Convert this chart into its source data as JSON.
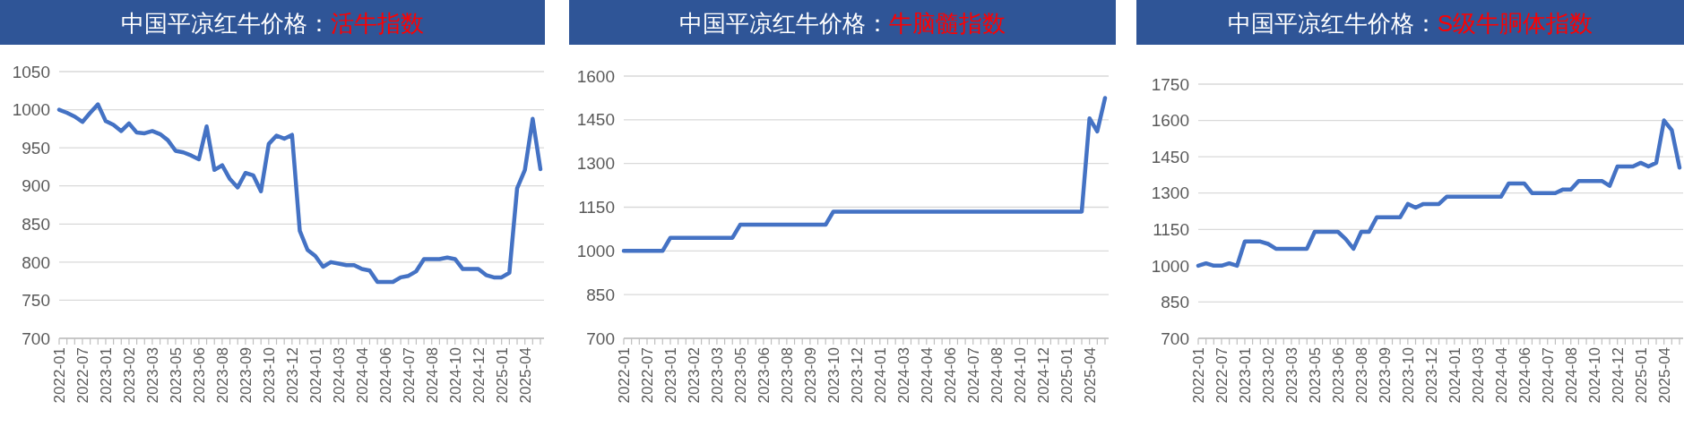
{
  "chart_data": [
    {
      "type": "line",
      "title": "中国平凉红牛价格：",
      "subtitle": "活牛指数",
      "categories": [
        "2022-01",
        null,
        null,
        "2022-07",
        null,
        null,
        "2023-01",
        null,
        null,
        "2023-02",
        null,
        null,
        "2023-03",
        null,
        null,
        "2023-05",
        null,
        null,
        "2023-06",
        null,
        null,
        "2023-08",
        null,
        null,
        "2023-09",
        null,
        null,
        "2023-10",
        null,
        null,
        "2023-12",
        null,
        null,
        "2024-01",
        null,
        null,
        "2024-03",
        null,
        null,
        "2024-04",
        null,
        null,
        "2024-06",
        null,
        null,
        "2024-07",
        null,
        null,
        "2024-08",
        null,
        null,
        "2024-10",
        null,
        null,
        "2024-12",
        null,
        null,
        "2025-01",
        null,
        null,
        "2025-04",
        null,
        null
      ],
      "series": [
        {
          "color": "#4472c4",
          "values": [
            1000,
            996,
            991,
            984,
            996,
            1007,
            985,
            980,
            972,
            982,
            970,
            969,
            972,
            968,
            960,
            946,
            944,
            940,
            935,
            978,
            921,
            927,
            909,
            898,
            917,
            914,
            893,
            955,
            966,
            962,
            967,
            841,
            816,
            808,
            794,
            800,
            798,
            796,
            796,
            791,
            789,
            774,
            774,
            774,
            780,
            782,
            788,
            804,
            804,
            804,
            806,
            804,
            791,
            791,
            791,
            783,
            780,
            780,
            786,
            897,
            921,
            988,
            922
          ]
        }
      ],
      "ylim": [
        700,
        1050
      ],
      "yticks": [
        700,
        750,
        800,
        850,
        900,
        950,
        1000,
        1050
      ],
      "grid": "y"
    },
    {
      "type": "line",
      "title": "中国平凉红牛价格：",
      "subtitle": "牛脑髓指数",
      "categories": [
        "2022-01",
        null,
        null,
        "2022-07",
        null,
        null,
        "2023-01",
        null,
        null,
        "2023-02",
        null,
        null,
        "2023-03",
        null,
        null,
        "2023-05",
        null,
        null,
        "2023-06",
        null,
        null,
        "2023-08",
        null,
        null,
        "2023-09",
        null,
        null,
        "2023-10",
        null,
        null,
        "2023-12",
        null,
        null,
        "2024-01",
        null,
        null,
        "2024-03",
        null,
        null,
        "2024-04",
        null,
        null,
        "2024-06",
        null,
        null,
        "2024-07",
        null,
        null,
        "2024-08",
        null,
        null,
        "2024-10",
        null,
        null,
        "2024-12",
        null,
        null,
        "2025-01",
        null,
        null,
        "2025-04",
        null,
        null
      ],
      "series": [
        {
          "color": "#4472c4",
          "values": [
            1000,
            1000,
            1000,
            1000,
            1000,
            1000,
            1045,
            1045,
            1045,
            1045,
            1045,
            1045,
            1045,
            1045,
            1045,
            1090,
            1090,
            1090,
            1090,
            1090,
            1090,
            1090,
            1090,
            1090,
            1090,
            1090,
            1090,
            1135,
            1135,
            1135,
            1135,
            1135,
            1135,
            1135,
            1135,
            1135,
            1135,
            1135,
            1135,
            1135,
            1135,
            1135,
            1135,
            1135,
            1135,
            1135,
            1135,
            1135,
            1135,
            1135,
            1135,
            1135,
            1135,
            1135,
            1135,
            1135,
            1135,
            1135,
            1135,
            1135,
            1455,
            1410,
            1525
          ]
        }
      ],
      "ylim": [
        700,
        1600
      ],
      "yticks": [
        700,
        850,
        1000,
        1150,
        1300,
        1450,
        1600
      ],
      "grid": "y"
    },
    {
      "type": "line",
      "title": "中国平凉红牛价格：",
      "subtitle": "S级牛胴体指数",
      "categories": [
        "2022-01",
        null,
        null,
        "2022-07",
        null,
        null,
        "2023-01",
        null,
        null,
        "2023-02",
        null,
        null,
        "2023-03",
        null,
        null,
        "2023-05",
        null,
        null,
        "2023-06",
        null,
        null,
        "2023-08",
        null,
        null,
        "2023-09",
        null,
        null,
        "2023-10",
        null,
        null,
        "2023-12",
        null,
        null,
        "2024-01",
        null,
        null,
        "2024-03",
        null,
        null,
        "2024-04",
        null,
        null,
        "2024-06",
        null,
        null,
        "2024-07",
        null,
        null,
        "2024-08",
        null,
        null,
        "2024-10",
        null,
        null,
        "2024-12",
        null,
        null,
        "2025-01",
        null,
        null,
        "2025-04",
        null,
        null
      ],
      "series": [
        {
          "color": "#4472c4",
          "values": [
            1000,
            1010,
            1000,
            1000,
            1010,
            1000,
            1100,
            1100,
            1100,
            1090,
            1070,
            1070,
            1070,
            1070,
            1070,
            1140,
            1140,
            1140,
            1140,
            1110,
            1070,
            1140,
            1140,
            1200,
            1200,
            1200,
            1200,
            1255,
            1240,
            1255,
            1255,
            1255,
            1285,
            1285,
            1285,
            1285,
            1285,
            1285,
            1285,
            1285,
            1340,
            1340,
            1340,
            1300,
            1300,
            1300,
            1300,
            1315,
            1315,
            1350,
            1350,
            1350,
            1350,
            1330,
            1410,
            1410,
            1410,
            1425,
            1410,
            1425,
            1600,
            1560,
            1405
          ]
        }
      ],
      "ylim": [
        700,
        1750
      ],
      "yticks": [
        700,
        850,
        1000,
        1150,
        1300,
        1450,
        1600,
        1750
      ],
      "grid": "y"
    }
  ]
}
